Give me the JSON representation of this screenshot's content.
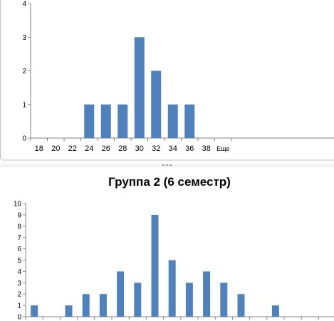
{
  "chart_data": [
    {
      "type": "bar",
      "title": "",
      "categories": [
        "18",
        "20",
        "22",
        "24",
        "26",
        "28",
        "30",
        "32",
        "34",
        "36",
        "38",
        "Еще"
      ],
      "values": [
        0,
        0,
        0,
        1,
        1,
        1,
        3,
        2,
        1,
        1,
        0,
        0
      ],
      "ylim": [
        0,
        4
      ],
      "yticks": [
        0,
        1,
        2,
        3,
        4
      ],
      "grid": false,
      "bar_color": "#4f81bd"
    },
    {
      "type": "bar",
      "title": "Группа 2 (6 семестр)",
      "categories": [
        "",
        "",
        "",
        "",
        "",
        "",
        "",
        "",
        "",
        "",
        "",
        "",
        "",
        "",
        "",
        "",
        ""
      ],
      "values": [
        1,
        0,
        1,
        2,
        2,
        4,
        3,
        9,
        5,
        3,
        4,
        3,
        2,
        0,
        1,
        0,
        0
      ],
      "ylim": [
        0,
        10
      ],
      "yticks": [
        0,
        1,
        2,
        3,
        4,
        5,
        6,
        7,
        8,
        9,
        10
      ],
      "grid": false,
      "bar_color": "#4f81bd"
    }
  ]
}
